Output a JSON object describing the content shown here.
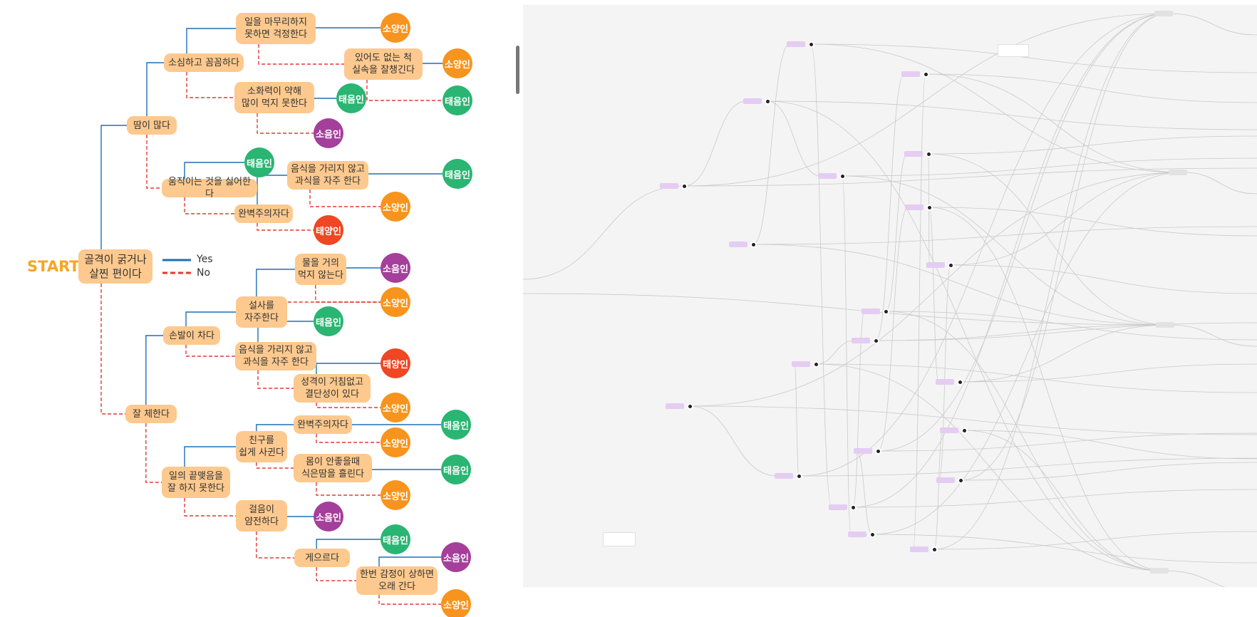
{
  "flowchart": {
    "start_label": "START !",
    "legend": {
      "yes": "Yes",
      "no": "No",
      "yes_color": "#1e6fb8",
      "no_color": "#e53935"
    },
    "colors": {
      "question": "#fdc98e",
      "소양인": "#f7941d",
      "태음인": "#2ab573",
      "소음인": "#a43f9b",
      "태양인": "#ef4623"
    },
    "questions": [
      {
        "id": "q1",
        "text": "골격이 굵거나\n살찐 편이다"
      },
      {
        "id": "q2",
        "text": "땀이 많다"
      },
      {
        "id": "q3",
        "text": "소심하고 꼼꼼하다"
      },
      {
        "id": "q4",
        "text": "일을 마무리하지\n못하면 걱정한다"
      },
      {
        "id": "q5",
        "text": "있어도 없는 척\n실속을 잘챙긴다"
      },
      {
        "id": "q6",
        "text": "소화력이 약해\n많이 먹지 못한다"
      },
      {
        "id": "q7",
        "text": "움직이는 것을 싫어한다"
      },
      {
        "id": "q8",
        "text": "음식을 가리지 않고\n과식을 자주 한다"
      },
      {
        "id": "q9",
        "text": "완벽주의자다"
      },
      {
        "id": "q10",
        "text": "잘 체한다"
      },
      {
        "id": "q11",
        "text": "손발이 차다"
      },
      {
        "id": "q12",
        "text": "설사를\n자주한다"
      },
      {
        "id": "q13",
        "text": "물을 거의\n먹지 않는다"
      },
      {
        "id": "q14",
        "text": "음식을 가리지 않고\n과식을 자주 한다"
      },
      {
        "id": "q15",
        "text": "성격이 거침없고\n결단성이 있다"
      },
      {
        "id": "q16",
        "text": "일의 끝맺음을\n잘 하지 못한다"
      },
      {
        "id": "q17",
        "text": "친구를\n쉽게 사귄다"
      },
      {
        "id": "q18",
        "text": "완벽주의자다"
      },
      {
        "id": "q19",
        "text": "몸이 안좋을때\n식은땀을 흘린다"
      },
      {
        "id": "q20",
        "text": "걸음이\n얌전하다"
      },
      {
        "id": "q21",
        "text": "게으르다"
      },
      {
        "id": "q22",
        "text": "한번 감정이 상하면\n오래 간다"
      }
    ],
    "results": [
      {
        "id": "r1",
        "type": "소양인"
      },
      {
        "id": "r2",
        "type": "소양인"
      },
      {
        "id": "r3",
        "type": "태음인"
      },
      {
        "id": "r4",
        "type": "태음인"
      },
      {
        "id": "r5",
        "type": "소음인"
      },
      {
        "id": "r6",
        "type": "태음인"
      },
      {
        "id": "r7",
        "type": "태음인"
      },
      {
        "id": "r8",
        "type": "소양인"
      },
      {
        "id": "r9",
        "type": "태양인"
      },
      {
        "id": "r10",
        "type": "소음인"
      },
      {
        "id": "r11",
        "type": "소양인"
      },
      {
        "id": "r12",
        "type": "태음인"
      },
      {
        "id": "r13",
        "type": "태양인"
      },
      {
        "id": "r14",
        "type": "소양인"
      },
      {
        "id": "r15",
        "type": "태음인"
      },
      {
        "id": "r16",
        "type": "소양인"
      },
      {
        "id": "r17",
        "type": "태음인"
      },
      {
        "id": "r18",
        "type": "소양인"
      },
      {
        "id": "r19",
        "type": "소음인"
      },
      {
        "id": "r20",
        "type": "태음인"
      },
      {
        "id": "r21",
        "type": "소음인"
      },
      {
        "id": "r22",
        "type": "소양인"
      }
    ]
  },
  "graph_canvas": {
    "background": "#f4f4f4",
    "node_label_color": "#e4ccf2"
  }
}
